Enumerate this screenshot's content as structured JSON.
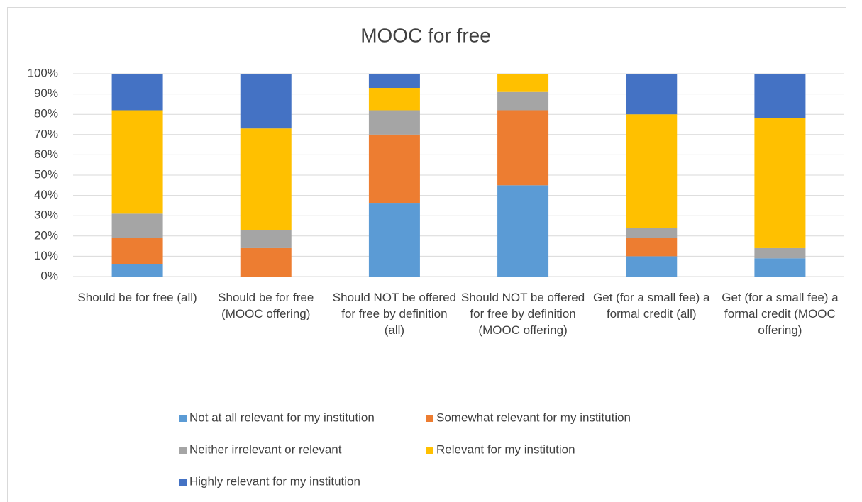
{
  "chart_data": {
    "type": "stacked_bar",
    "title": "MOOC for free",
    "categories": [
      "Should be for free (all)",
      "Should be for free (MOOC offering)",
      "Should NOT be offered for free by definition (all)",
      "Should NOT be offered for free by definition (MOOC offering)",
      "Get (for a small fee) a formal credit (all)",
      "Get (for a small fee) a formal credit (MOOC offering)"
    ],
    "series": [
      {
        "name": "Not at all relevant for my institution",
        "color": "#5b9bd5",
        "values": [
          6,
          0,
          36,
          45,
          10,
          9
        ]
      },
      {
        "name": "Somewhat relevant for my institution",
        "color": "#ed7d31",
        "values": [
          13,
          14,
          34,
          37,
          9,
          0
        ]
      },
      {
        "name": "Neither irrelevant or relevant",
        "color": "#a5a5a5",
        "values": [
          12,
          9,
          12,
          9,
          5,
          5
        ]
      },
      {
        "name": "Relevant for my institution",
        "color": "#ffc000",
        "values": [
          51,
          50,
          11,
          9,
          56,
          64
        ]
      },
      {
        "name": "Highly relevant for my institution",
        "color": "#4472c4",
        "values": [
          18,
          27,
          7,
          0,
          20,
          22
        ]
      }
    ],
    "ylim": [
      0,
      100
    ],
    "yticks": [
      {
        "value": 0,
        "label": "0%"
      },
      {
        "value": 10,
        "label": "10%"
      },
      {
        "value": 20,
        "label": "20%"
      },
      {
        "value": 30,
        "label": "30%"
      },
      {
        "value": 40,
        "label": "40%"
      },
      {
        "value": 50,
        "label": "50%"
      },
      {
        "value": 60,
        "label": "60%"
      },
      {
        "value": 70,
        "label": "70%"
      },
      {
        "value": 80,
        "label": "80%"
      },
      {
        "value": 90,
        "label": "90%"
      },
      {
        "value": 100,
        "label": "100%"
      }
    ],
    "grid": true
  }
}
